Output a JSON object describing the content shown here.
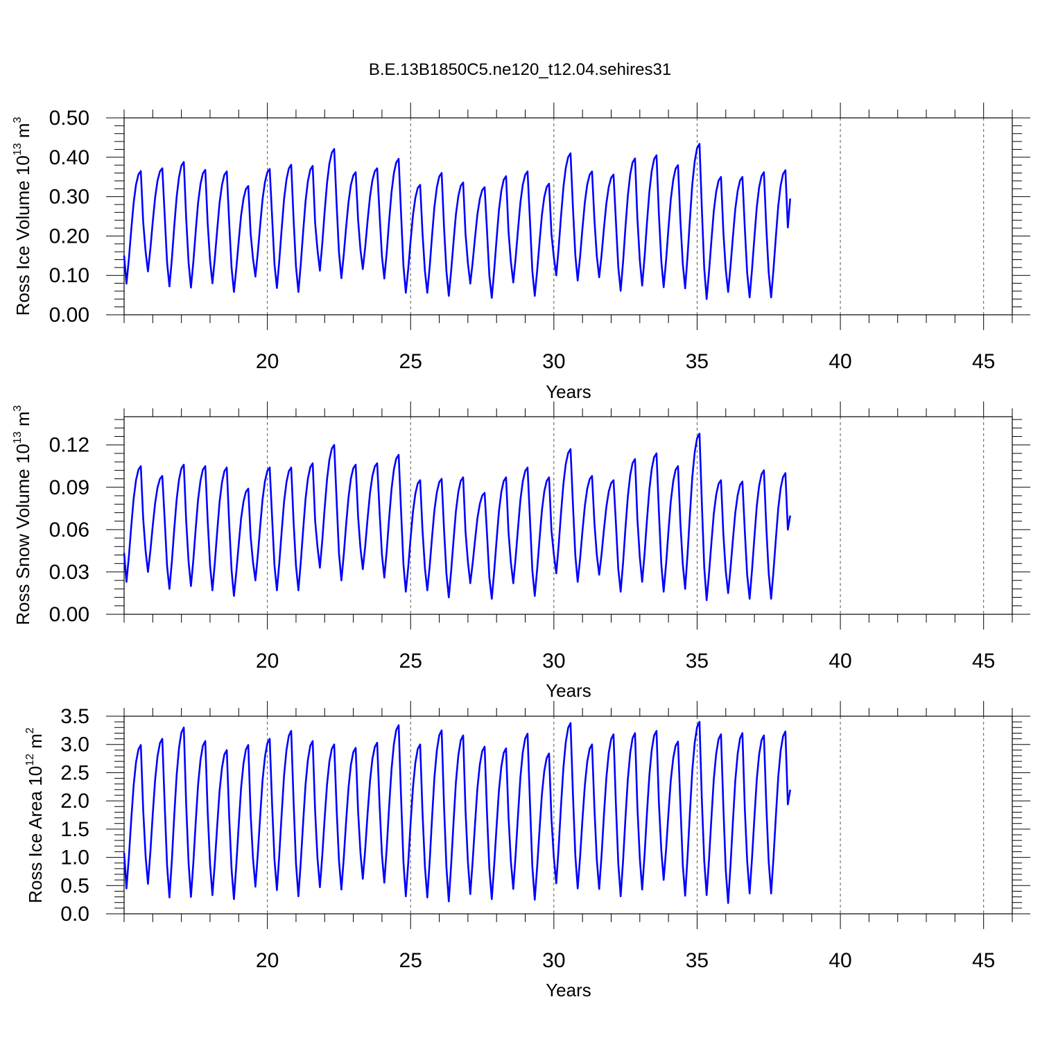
{
  "title": "B.E.13B1850C5.ne120_t12.04.sehires31",
  "series_color": "#0000ff",
  "chart_data": [
    {
      "type": "line",
      "title": "B.E.13B1850C5.ne120_t12.04.sehires31",
      "xlabel": "Years",
      "ylabel_main": "Ross Ice Volume 10",
      "ylabel_exp": "13",
      "ylabel_unit": " m",
      "ylabel_unit_exp": "3",
      "xlim": [
        15,
        46
      ],
      "ylim": [
        0,
        0.5
      ],
      "x_ticks": [
        20,
        25,
        30,
        35,
        40,
        45
      ],
      "y_ticks": [
        "0.00",
        "0.10",
        "0.20",
        "0.30",
        "0.40",
        "0.50"
      ],
      "grid": "vertical dashed at labeled x ticks",
      "x_start": 15.0,
      "x_step": 0.08333,
      "peaks": [
        0.365,
        0.372,
        0.388,
        0.368,
        0.364,
        0.327,
        0.37,
        0.381,
        0.378,
        0.421,
        0.362,
        0.372,
        0.396,
        0.33,
        0.36,
        0.336,
        0.324,
        0.352,
        0.364,
        0.333,
        0.41,
        0.364,
        0.356,
        0.397,
        0.405,
        0.38,
        0.434,
        0.35,
        0.35,
        0.362,
        0.367
      ],
      "troughs": [
        0.079,
        0.11,
        0.072,
        0.069,
        0.08,
        0.058,
        0.097,
        0.068,
        0.058,
        0.112,
        0.093,
        0.116,
        0.092,
        0.056,
        0.056,
        0.048,
        0.079,
        0.043,
        0.082,
        0.048,
        0.1,
        0.087,
        0.095,
        0.061,
        0.074,
        0.07,
        0.067,
        0.04,
        0.058,
        0.044
      ],
      "end_value": 0.295
    },
    {
      "type": "line",
      "title": "",
      "xlabel": "Years",
      "ylabel_main": "Ross Snow Volume 10",
      "ylabel_exp": "13",
      "ylabel_unit": " m",
      "ylabel_unit_exp": "3",
      "xlim": [
        15,
        46
      ],
      "ylim": [
        0,
        0.14
      ],
      "x_ticks": [
        20,
        25,
        30,
        35,
        40,
        45
      ],
      "y_ticks": [
        "0.00",
        "0.03",
        "0.06",
        "0.09",
        "0.12"
      ],
      "grid": "vertical dashed at labeled x ticks",
      "x_start": 15.0,
      "x_step": 0.08333,
      "peaks": [
        0.105,
        0.098,
        0.106,
        0.105,
        0.104,
        0.089,
        0.104,
        0.104,
        0.107,
        0.12,
        0.106,
        0.107,
        0.113,
        0.095,
        0.096,
        0.097,
        0.086,
        0.097,
        0.104,
        0.097,
        0.117,
        0.098,
        0.095,
        0.11,
        0.114,
        0.105,
        0.128,
        0.095,
        0.094,
        0.102,
        0.1
      ],
      "troughs": [
        0.023,
        0.03,
        0.018,
        0.02,
        0.017,
        0.013,
        0.024,
        0.017,
        0.017,
        0.033,
        0.024,
        0.032,
        0.026,
        0.016,
        0.017,
        0.012,
        0.022,
        0.011,
        0.022,
        0.013,
        0.029,
        0.023,
        0.028,
        0.016,
        0.023,
        0.016,
        0.018,
        0.01,
        0.015,
        0.011
      ],
      "end_value": 0.07
    },
    {
      "type": "line",
      "title": "",
      "xlabel": "Years",
      "ylabel_main": "Ross Ice Area 10",
      "ylabel_exp": "12",
      "ylabel_unit": " m",
      "ylabel_unit_exp": "2",
      "xlim": [
        15,
        46
      ],
      "ylim": [
        0,
        3.5
      ],
      "x_ticks": [
        20,
        25,
        30,
        35,
        40,
        45
      ],
      "y_ticks": [
        "0.0",
        "0.5",
        "1.0",
        "1.5",
        "2.0",
        "2.5",
        "3.0",
        "3.5"
      ],
      "grid": "vertical dashed at labeled x ticks",
      "x_start": 15.0,
      "x_step": 0.08333,
      "peaks": [
        2.99,
        3.1,
        3.3,
        3.06,
        2.9,
        2.99,
        3.1,
        3.24,
        3.06,
        3.0,
        2.94,
        3.03,
        3.34,
        3.0,
        3.25,
        3.16,
        2.96,
        2.93,
        3.19,
        2.84,
        3.38,
        3.0,
        3.18,
        3.2,
        3.24,
        3.05,
        3.4,
        3.18,
        3.2,
        3.16,
        3.23
      ],
      "troughs": [
        0.45,
        0.53,
        0.29,
        0.3,
        0.33,
        0.26,
        0.48,
        0.42,
        0.31,
        0.47,
        0.43,
        0.62,
        0.55,
        0.31,
        0.29,
        0.22,
        0.35,
        0.26,
        0.44,
        0.25,
        0.54,
        0.45,
        0.44,
        0.31,
        0.43,
        0.6,
        0.32,
        0.33,
        0.19,
        0.36
      ],
      "end_value": 2.2
    }
  ]
}
